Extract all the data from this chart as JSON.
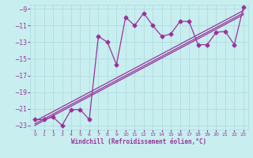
{
  "title": "",
  "xlabel": "Windchill (Refroidissement éolien,°C)",
  "ylabel": "",
  "bg_color": "#c8eef0",
  "grid_color": "#b0dde0",
  "line_color": "#993399",
  "xlim": [
    -0.5,
    23.5
  ],
  "ylim": [
    -23.5,
    -8.5
  ],
  "xticks": [
    0,
    1,
    2,
    3,
    4,
    5,
    6,
    7,
    8,
    9,
    10,
    11,
    12,
    13,
    14,
    15,
    16,
    17,
    18,
    19,
    20,
    21,
    22,
    23
  ],
  "yticks": [
    -23,
    -21,
    -19,
    -17,
    -15,
    -13,
    -11,
    -9
  ],
  "scatter_x": [
    0,
    1,
    2,
    3,
    4,
    5,
    6,
    7,
    8,
    9,
    10,
    11,
    12,
    13,
    14,
    15,
    16,
    17,
    18,
    19,
    20,
    21,
    22,
    23
  ],
  "scatter_y": [
    -22.3,
    -22.3,
    -22.0,
    -23.0,
    -21.1,
    -21.1,
    -22.3,
    -12.3,
    -13.0,
    -15.7,
    -10.0,
    -11.0,
    -9.5,
    -11.0,
    -12.3,
    -12.0,
    -10.5,
    -10.5,
    -13.3,
    -13.3,
    -11.8,
    -11.7,
    -13.3,
    -8.8
  ],
  "line1_x": [
    0,
    23
  ],
  "line1_y": [
    -22.5,
    -9.2
  ],
  "line2_x": [
    0,
    23
  ],
  "line2_y": [
    -22.8,
    -9.5
  ],
  "line3_x": [
    0,
    23
  ],
  "line3_y": [
    -23.0,
    -9.7
  ]
}
